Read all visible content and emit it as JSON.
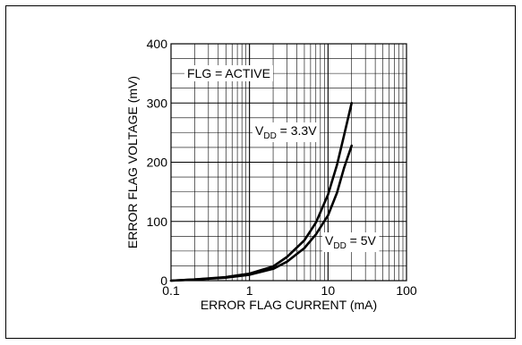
{
  "chart_data": {
    "type": "line",
    "title": "",
    "xlabel": "ERROR FLAG CURRENT (mA)",
    "ylabel": "ERROR FLAG VOLTAGE (mV)",
    "x_scale": "log",
    "xlim": [
      0.1,
      100
    ],
    "ylim": [
      0,
      400
    ],
    "x_ticks": [
      "0.1",
      "1",
      "10",
      "100"
    ],
    "y_ticks": [
      "0",
      "100",
      "200",
      "300",
      "400"
    ],
    "grid": true,
    "series": [
      {
        "name": "VDD = 3.3V",
        "x": [
          0.1,
          0.2,
          0.5,
          1,
          2,
          3,
          5,
          7,
          10,
          13,
          16,
          20
        ],
        "y": [
          0,
          2,
          6,
          12,
          24,
          40,
          68,
          98,
          145,
          195,
          245,
          300
        ]
      },
      {
        "name": "VDD = 5V",
        "x": [
          0.1,
          0.2,
          0.5,
          1,
          2,
          3,
          5,
          7,
          10,
          13,
          16,
          20
        ],
        "y": [
          0,
          2,
          5,
          10,
          20,
          32,
          55,
          78,
          110,
          148,
          190,
          228
        ]
      }
    ],
    "annotations": [
      {
        "text": "FLG = ACTIVE"
      },
      {
        "main": "V",
        "sub": "DD",
        "rest": " = 3.3V"
      },
      {
        "main": "V",
        "sub": "DD",
        "rest": " = 5V"
      }
    ]
  }
}
